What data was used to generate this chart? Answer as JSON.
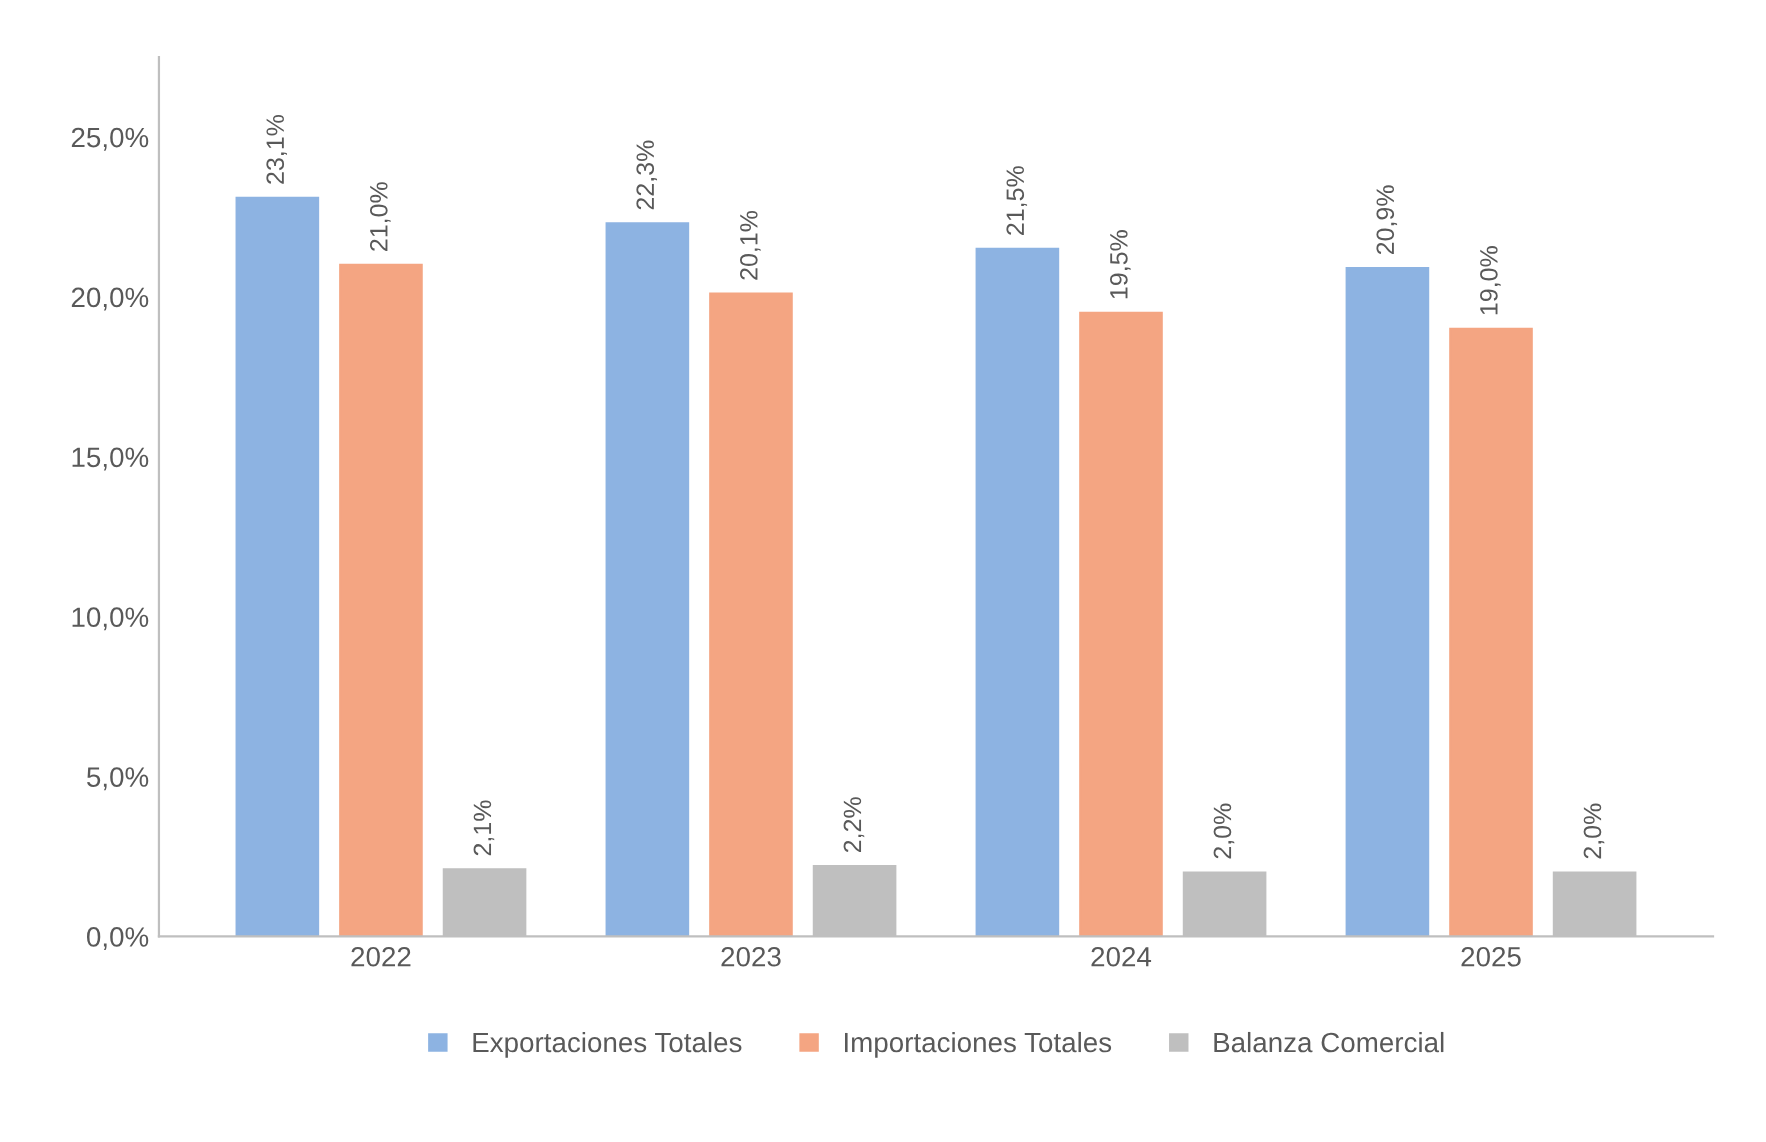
{
  "chart_data": {
    "type": "bar",
    "categories": [
      "2022",
      "2023",
      "2024",
      "2025"
    ],
    "series": [
      {
        "name": "Exportaciones Totales",
        "color": "#8db3e2",
        "values": [
          23.1,
          22.3,
          21.5,
          20.9
        ],
        "value_labels": [
          "23,1%",
          "22,3%",
          "21,5%",
          "20,9%"
        ]
      },
      {
        "name": "Importaciones Totales",
        "color": "#f4a582",
        "values": [
          21.0,
          20.1,
          19.5,
          19.0
        ],
        "value_labels": [
          "21,0%",
          "20,1%",
          "19,5%",
          "19,0%"
        ]
      },
      {
        "name": "Balanza Comercial",
        "color": "#bfbfbf",
        "values": [
          2.1,
          2.2,
          2.0,
          2.0
        ],
        "value_labels": [
          "2,1%",
          "2,2%",
          "2,0%",
          "2,0%"
        ]
      }
    ],
    "ylim": [
      0,
      27.5
    ],
    "yticks": [
      {
        "value": 0,
        "label": "0,0%"
      },
      {
        "value": 5,
        "label": "5,0%"
      },
      {
        "value": 10,
        "label": "10,0%"
      },
      {
        "value": 15,
        "label": "15,0%"
      },
      {
        "value": 20,
        "label": "20,0%"
      },
      {
        "value": 25,
        "label": "25,0%"
      }
    ],
    "grid": false,
    "legend": "bottom"
  }
}
